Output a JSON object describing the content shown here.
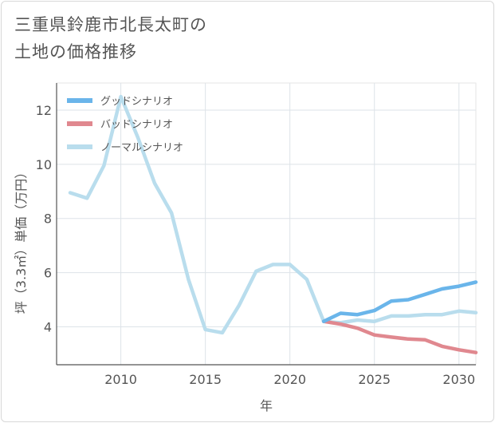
{
  "title_lines": [
    "三重県鈴鹿市北長太町の",
    "土地の価格推移"
  ],
  "chart_data": {
    "type": "line",
    "xlabel": "年",
    "ylabel": "坪（3.3㎡）単価（万円）",
    "xlim": [
      2006.2,
      2031
    ],
    "ylim": [
      2.6,
      13
    ],
    "x_ticks": [
      2010,
      2015,
      2020,
      2025,
      2030
    ],
    "y_ticks": [
      4,
      6,
      8,
      10,
      12
    ],
    "grid": true,
    "legend_position": "top-left",
    "series": [
      {
        "name": "グッドシナリオ",
        "color": "#6ab5ea",
        "x": [
          2022,
          2023,
          2024,
          2025,
          2026,
          2027,
          2028,
          2029,
          2030,
          2031
        ],
        "values": [
          4.2,
          4.5,
          4.45,
          4.6,
          4.95,
          5.0,
          5.2,
          5.4,
          5.5,
          5.65
        ]
      },
      {
        "name": "バッドシナリオ",
        "color": "#e0888f",
        "x": [
          2022,
          2023,
          2024,
          2025,
          2026,
          2027,
          2028,
          2029,
          2030,
          2031
        ],
        "values": [
          4.2,
          4.1,
          3.95,
          3.7,
          3.62,
          3.55,
          3.52,
          3.28,
          3.15,
          3.05
        ]
      },
      {
        "name": "ノーマルシナリオ",
        "color": "#b9dded",
        "x": [
          2007,
          2008,
          2009,
          2010,
          2011,
          2012,
          2013,
          2014,
          2015,
          2016,
          2017,
          2018,
          2019,
          2020,
          2021,
          2022,
          2023,
          2024,
          2025,
          2026,
          2027,
          2028,
          2029,
          2030,
          2031
        ],
        "values": [
          8.95,
          8.75,
          9.95,
          12.5,
          11.0,
          9.3,
          8.2,
          5.75,
          3.9,
          3.78,
          4.8,
          6.05,
          6.3,
          6.3,
          5.75,
          4.2,
          4.15,
          4.25,
          4.2,
          4.4,
          4.4,
          4.45,
          4.45,
          4.58,
          4.52
        ]
      }
    ]
  }
}
